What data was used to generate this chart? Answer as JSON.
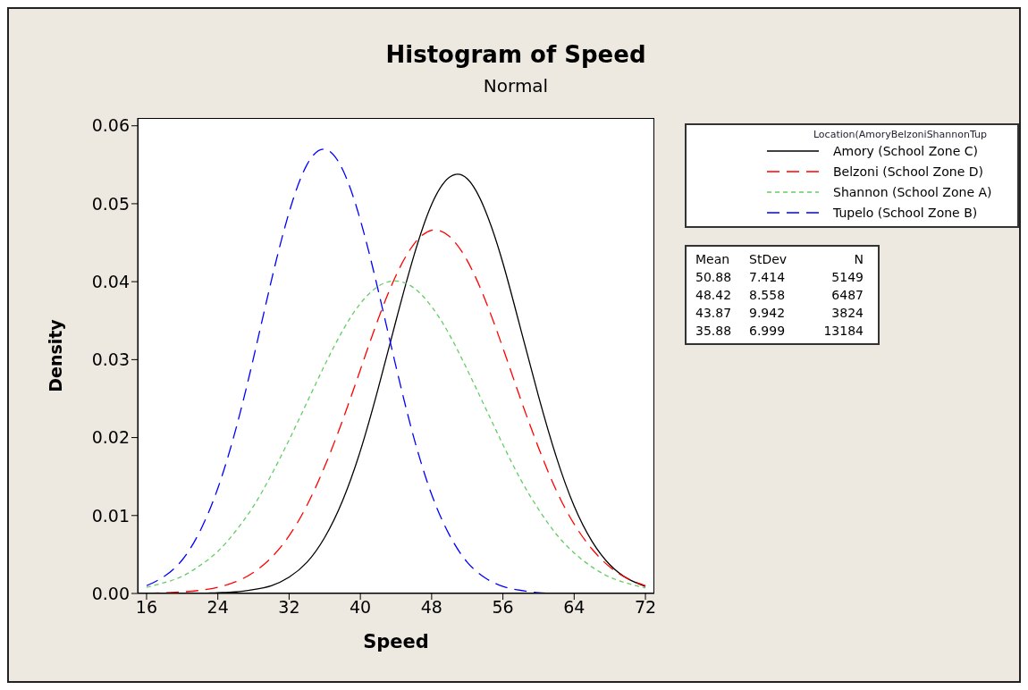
{
  "chart_data": {
    "type": "line",
    "title": "Histogram of Speed",
    "subtitle": "Normal",
    "xlabel": "Speed",
    "ylabel": "Density",
    "legend_title": "Location(AmoryBelzoniShannonTup",
    "x": [
      16,
      18,
      20,
      22,
      24,
      26,
      28,
      30,
      32,
      34,
      36,
      38,
      40,
      42,
      44,
      46,
      48,
      50,
      52,
      54,
      56,
      58,
      60,
      62,
      64,
      66,
      68,
      70,
      72
    ],
    "series": [
      {
        "name": "Amory (School Zone C)",
        "color": "#000000",
        "line_style": "solid",
        "values": [
          0.0,
          0.0,
          0.0,
          0.0,
          0.0001,
          0.0002,
          0.0005,
          0.001,
          0.0021,
          0.004,
          0.0072,
          0.0119,
          0.0183,
          0.0263,
          0.035,
          0.0433,
          0.0499,
          0.0534,
          0.0532,
          0.0492,
          0.0424,
          0.0339,
          0.0253,
          0.0175,
          0.0112,
          0.0067,
          0.0037,
          0.0019,
          0.0009
        ]
      },
      {
        "name": "Belzoni (School Zone D)",
        "color": "#ff0000",
        "line_style": "dashed",
        "values": [
          0.0,
          0.0001,
          0.0002,
          0.0004,
          0.0008,
          0.0015,
          0.0027,
          0.0046,
          0.0074,
          0.0113,
          0.0163,
          0.0222,
          0.0287,
          0.0352,
          0.0408,
          0.0448,
          0.0466,
          0.0458,
          0.0427,
          0.0377,
          0.0315,
          0.0249,
          0.0187,
          0.0132,
          0.0089,
          0.0057,
          0.0034,
          0.0019,
          0.001
        ]
      },
      {
        "name": "Shannon (School Zone A)",
        "color": "#66cc66",
        "line_style": "dotted",
        "values": [
          0.0008,
          0.0014,
          0.0022,
          0.0036,
          0.0054,
          0.008,
          0.0112,
          0.0152,
          0.0197,
          0.0245,
          0.0293,
          0.0337,
          0.0372,
          0.0394,
          0.0401,
          0.0392,
          0.0368,
          0.0332,
          0.0287,
          0.0239,
          0.0191,
          0.0146,
          0.0108,
          0.0076,
          0.0052,
          0.0034,
          0.0021,
          0.0013,
          0.0007
        ]
      },
      {
        "name": "Tupelo (School Zone B)",
        "color": "#0000ff",
        "line_style": "dashed",
        "values": [
          0.001,
          0.0022,
          0.0043,
          0.008,
          0.0135,
          0.021,
          0.0302,
          0.0401,
          0.0489,
          0.055,
          0.057,
          0.0544,
          0.0479,
          0.0389,
          0.0291,
          0.02,
          0.0127,
          0.0075,
          0.004,
          0.002,
          0.0009,
          0.0004,
          0.0001,
          0.0,
          null,
          null,
          null,
          null,
          null
        ]
      }
    ],
    "xlim": [
      15,
      73
    ],
    "xticks": [
      16,
      24,
      32,
      40,
      48,
      56,
      64,
      72
    ],
    "ylim": [
      0,
      0.061
    ],
    "yticks": [
      {
        "value": 0,
        "label": "0.00"
      },
      {
        "value": 0.01,
        "label": "0.01"
      },
      {
        "value": 0.02,
        "label": "0.02"
      },
      {
        "value": 0.03,
        "label": "0.03"
      },
      {
        "value": 0.04,
        "label": "0.04"
      },
      {
        "value": 0.05,
        "label": "0.05"
      },
      {
        "value": 0.06,
        "label": "0.06"
      }
    ],
    "grid": false,
    "legend": "top right",
    "marker": "none",
    "annotations": [
      "Mean",
      "StDev",
      "N",
      "50.88",
      "7.414",
      "5149",
      "48.42",
      "8.558",
      "6487",
      "43.87",
      "9.942",
      "3824",
      "35.88",
      "6.999",
      "13184"
    ]
  }
}
